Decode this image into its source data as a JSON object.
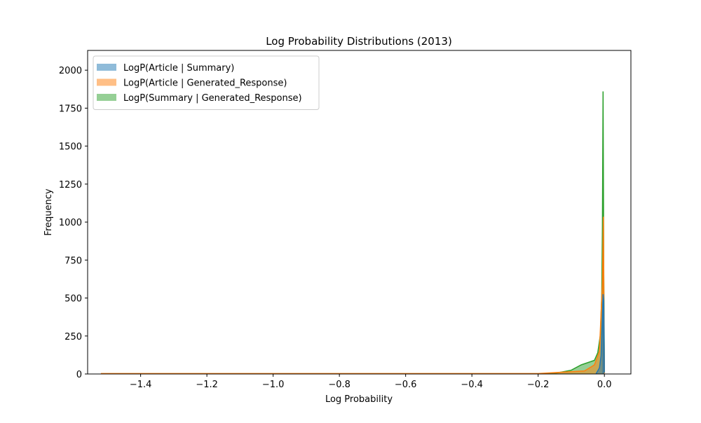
{
  "chart_data": {
    "type": "histogram",
    "title": "Log Probability Distributions (2013)",
    "xlabel": "Log Probability",
    "ylabel": "Frequency",
    "xlim": [
      -1.56,
      0.08
    ],
    "ylim": [
      0,
      2130
    ],
    "xticks": [
      -1.4,
      -1.2,
      -1.0,
      -0.8,
      -0.6,
      -0.4,
      -0.2,
      0.0
    ],
    "xtick_labels": [
      "−1.4",
      "−1.2",
      "−1.0",
      "−0.8",
      "−0.6",
      "−0.4",
      "−0.2",
      "0.0"
    ],
    "yticks": [
      0,
      250,
      500,
      750,
      1000,
      1250,
      1500,
      1750,
      2000
    ],
    "ytick_labels": [
      "0",
      "250",
      "500",
      "750",
      "1000",
      "1250",
      "1500",
      "1750",
      "2000"
    ],
    "grid": false,
    "legend_position": "upper-left",
    "series": [
      {
        "name": "LogP(Article | Summary)",
        "color": "#1f77b4",
        "x_range": [
          -0.025,
          0.0
        ],
        "peak_x": -0.004,
        "peak_frequency": 525,
        "note_points": [
          [
            -0.025,
            2
          ],
          [
            -0.015,
            40
          ],
          [
            -0.01,
            120
          ],
          [
            -0.007,
            320
          ],
          [
            -0.004,
            525
          ],
          [
            -0.002,
            480
          ],
          [
            0.0,
            10
          ]
        ]
      },
      {
        "name": "LogP(Article | Generated_Response)",
        "color": "#ff7f0e",
        "x_range": [
          -1.52,
          0.0
        ],
        "peak_x": -0.003,
        "peak_frequency": 1035,
        "note_points": [
          [
            -1.52,
            3
          ],
          [
            -0.2,
            3
          ],
          [
            -0.06,
            20
          ],
          [
            -0.03,
            60
          ],
          [
            -0.015,
            150
          ],
          [
            -0.006,
            600
          ],
          [
            -0.003,
            1035
          ],
          [
            -0.001,
            260
          ],
          [
            0.0,
            5
          ]
        ]
      },
      {
        "name": "LogP(Summary | Generated_Response)",
        "color": "#2ca02c",
        "x_range": [
          -0.2,
          0.0
        ],
        "peak_x": -0.004,
        "peak_frequency": 1860,
        "note_points": [
          [
            -0.2,
            1
          ],
          [
            -0.15,
            4
          ],
          [
            -0.1,
            25
          ],
          [
            -0.07,
            60
          ],
          [
            -0.05,
            75
          ],
          [
            -0.03,
            90
          ],
          [
            -0.02,
            140
          ],
          [
            -0.012,
            260
          ],
          [
            -0.008,
            520
          ],
          [
            -0.006,
            970
          ],
          [
            -0.004,
            1860
          ],
          [
            -0.002,
            700
          ],
          [
            0.0,
            5
          ]
        ]
      }
    ]
  }
}
